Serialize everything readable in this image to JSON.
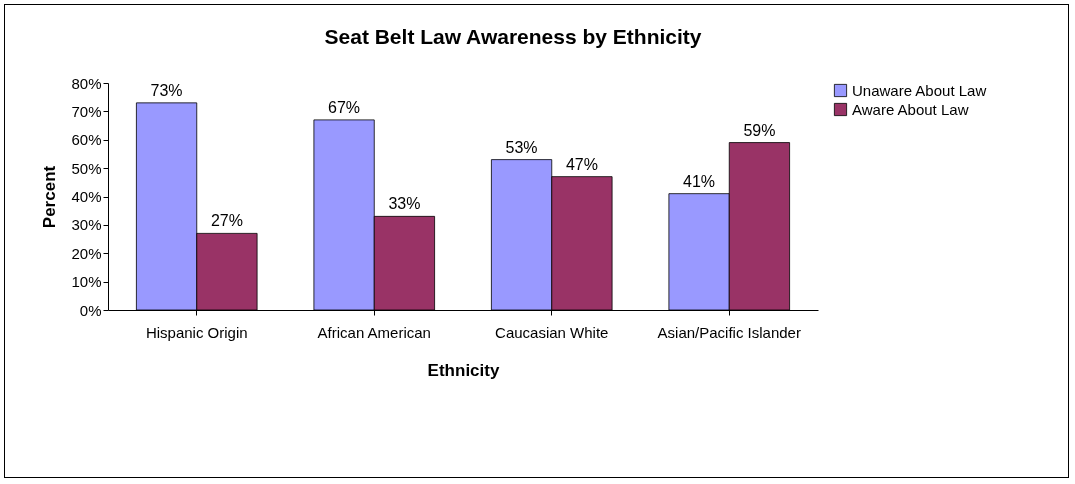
{
  "chart_data": {
    "type": "bar",
    "title": "Seat Belt Law Awareness by Ethnicity",
    "xlabel": "Ethnicity",
    "ylabel": "Percent",
    "categories": [
      "Hispanic Origin",
      "African American",
      "Caucasian White",
      "Asian/Pacific Islander"
    ],
    "series": [
      {
        "name": "Unaware About Law",
        "color": "#9999ff",
        "values": [
          73,
          67,
          53,
          41
        ],
        "value_labels": [
          "73%",
          "67%",
          "53%",
          "41%"
        ]
      },
      {
        "name": "Aware About Law",
        "color": "#993366",
        "values": [
          27,
          33,
          47,
          59
        ],
        "value_labels": [
          "27%",
          "33%",
          "47%",
          "59%"
        ]
      }
    ],
    "ylim": [
      0,
      80
    ],
    "yticks": [
      {
        "value": 0,
        "label": "0%"
      },
      {
        "value": 10,
        "label": "10%"
      },
      {
        "value": 20,
        "label": "20%"
      },
      {
        "value": 30,
        "label": "30%"
      },
      {
        "value": 40,
        "label": "40%"
      },
      {
        "value": 50,
        "label": "50%"
      },
      {
        "value": 60,
        "label": "60%"
      },
      {
        "value": 70,
        "label": "70%"
      },
      {
        "value": 80,
        "label": "80%"
      }
    ],
    "legend": "right"
  }
}
